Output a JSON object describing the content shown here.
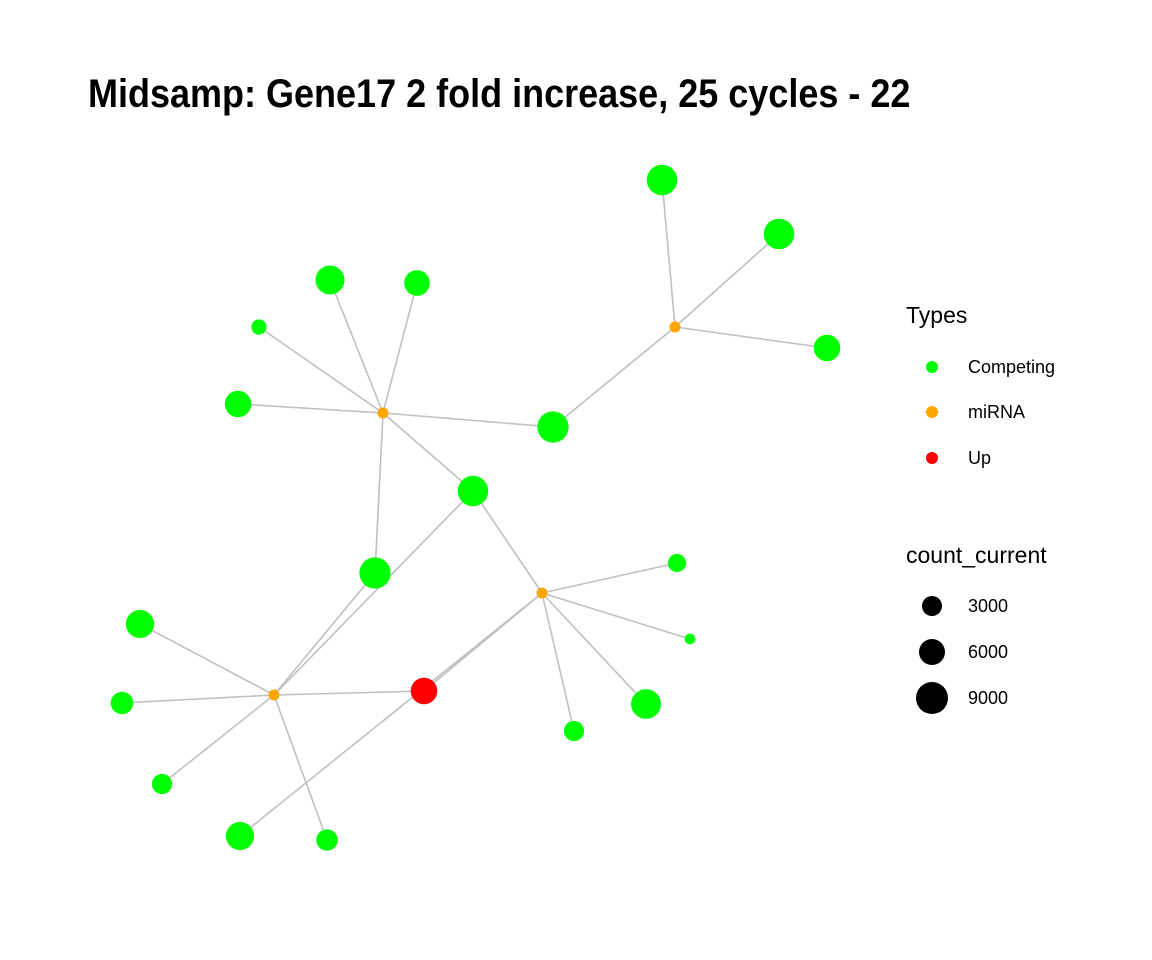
{
  "title": "Midsamp: Gene17 2 fold increase, 25 cycles - 22",
  "colors": {
    "Competing": "#00ff00",
    "miRNA": "#ffa500",
    "Up": "#ff0000",
    "edge": "#c0c0c0",
    "size_key": "#000000"
  },
  "legend": {
    "types_title": "Types",
    "types": [
      {
        "label": "Competing",
        "type": "Competing"
      },
      {
        "label": "miRNA",
        "type": "miRNA"
      },
      {
        "label": "Up",
        "type": "Up"
      }
    ],
    "size_title": "count_current",
    "sizes": [
      {
        "label": "3000",
        "count": 3000
      },
      {
        "label": "6000",
        "count": 6000
      },
      {
        "label": "9000",
        "count": 9000
      }
    ]
  },
  "network": {
    "nodes": [
      {
        "id": "m1",
        "type": "miRNA"
      },
      {
        "id": "m2",
        "type": "miRNA"
      },
      {
        "id": "m3",
        "type": "miRNA"
      },
      {
        "id": "m4",
        "type": "miRNA"
      },
      {
        "id": "up",
        "type": "Up",
        "count_current": 5500
      },
      {
        "id": "hub1",
        "type": "Competing",
        "count_current": 8500
      },
      {
        "id": "hub2",
        "type": "Competing",
        "count_current": 8500
      },
      {
        "id": "hub3",
        "type": "Competing",
        "count_current": 8000
      },
      {
        "id": "c1",
        "type": "Competing",
        "count_current": 8000
      },
      {
        "id": "c2",
        "type": "Competing",
        "count_current": 8000
      },
      {
        "id": "c3",
        "type": "Competing",
        "count_current": 5500
      },
      {
        "id": "c4",
        "type": "Competing",
        "count_current": 7000
      },
      {
        "id": "c5",
        "type": "Competing",
        "count_current": 5000
      },
      {
        "id": "c6",
        "type": "Competing",
        "count_current": 1000
      },
      {
        "id": "c7",
        "type": "Competing",
        "count_current": 5500
      },
      {
        "id": "c8",
        "type": "Competing",
        "count_current": 6500
      },
      {
        "id": "c9",
        "type": "Competing",
        "count_current": 3500
      },
      {
        "id": "c10",
        "type": "Competing",
        "count_current": 2500
      },
      {
        "id": "c11",
        "type": "Competing",
        "count_current": 3000
      },
      {
        "id": "c12",
        "type": "Competing",
        "count_current": 6500
      },
      {
        "id": "c13",
        "type": "Competing",
        "count_current": 1800
      },
      {
        "id": "c14",
        "type": "Competing",
        "count_current": 200
      },
      {
        "id": "c15",
        "type": "Competing",
        "count_current": 7500
      },
      {
        "id": "c16",
        "type": "Competing",
        "count_current": 2500
      }
    ],
    "edges": [
      [
        "m1",
        "c1"
      ],
      [
        "m1",
        "c2"
      ],
      [
        "m1",
        "c3"
      ],
      [
        "m1",
        "hub1"
      ],
      [
        "m2",
        "c4"
      ],
      [
        "m2",
        "c5"
      ],
      [
        "m2",
        "c6"
      ],
      [
        "m2",
        "c7"
      ],
      [
        "m2",
        "hub1"
      ],
      [
        "m2",
        "hub2"
      ],
      [
        "m2",
        "hub3"
      ],
      [
        "m3",
        "hub2"
      ],
      [
        "m3",
        "hub3"
      ],
      [
        "m3",
        "up"
      ],
      [
        "m3",
        "c8"
      ],
      [
        "m3",
        "c9"
      ],
      [
        "m3",
        "c10"
      ],
      [
        "m3",
        "c11"
      ],
      [
        "m4",
        "hub3"
      ],
      [
        "m4",
        "up"
      ],
      [
        "m4",
        "c12"
      ],
      [
        "m4",
        "c13"
      ],
      [
        "m4",
        "c14"
      ],
      [
        "m4",
        "c15"
      ],
      [
        "m4",
        "c16"
      ]
    ]
  }
}
